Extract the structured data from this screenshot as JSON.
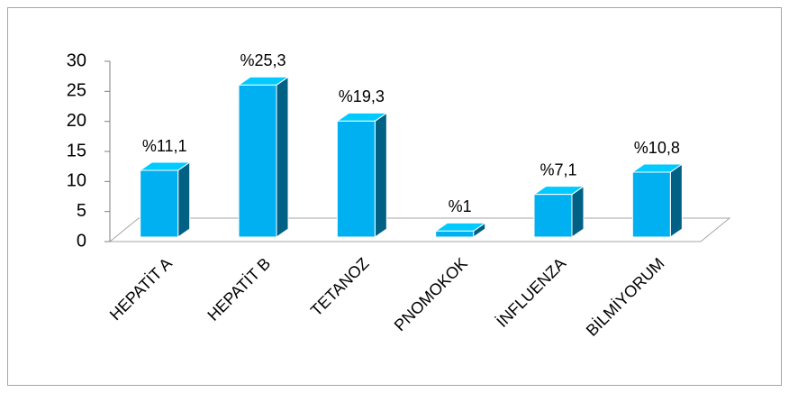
{
  "chart_data": {
    "type": "bar",
    "categories": [
      "HEPATİT A",
      "HEPATİT B",
      "TETANOZ",
      "PNOMOKOK",
      "İNFLUENZA",
      "BİLMİYORUM"
    ],
    "values": [
      11.1,
      25.3,
      19.3,
      1,
      7.1,
      10.8
    ],
    "value_labels": [
      "%11,1",
      "%25,3",
      "%19,3",
      "%1",
      "%7,1",
      "%10,8"
    ],
    "color": "#00b0f0",
    "ylim": [
      0,
      30
    ],
    "yticks": [
      0,
      5,
      10,
      15,
      20,
      25,
      30
    ],
    "grid": false
  }
}
